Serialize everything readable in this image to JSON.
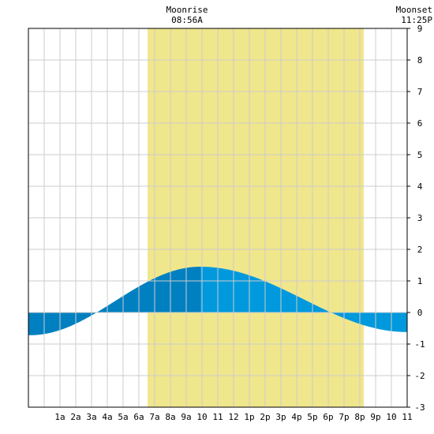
{
  "header": {
    "moonrise_label": "Moonrise",
    "moonrise_time": "08:56A",
    "moonset_label": "Moonset",
    "moonset_time": "11:25P"
  },
  "chart_data": {
    "type": "area",
    "title": "",
    "xlabel": "",
    "ylabel": "",
    "x_range_hours": [
      -1,
      23
    ],
    "ylim": [
      -3,
      9
    ],
    "y_ticks": [
      -3,
      -2,
      -1,
      0,
      1,
      2,
      3,
      4,
      5,
      6,
      7,
      8,
      9
    ],
    "x_ticks": [
      {
        "hour": 1,
        "label": "1a"
      },
      {
        "hour": 2,
        "label": "2a"
      },
      {
        "hour": 3,
        "label": "3a"
      },
      {
        "hour": 4,
        "label": "4a"
      },
      {
        "hour": 5,
        "label": "5a"
      },
      {
        "hour": 6,
        "label": "6a"
      },
      {
        "hour": 7,
        "label": "7a"
      },
      {
        "hour": 8,
        "label": "8a"
      },
      {
        "hour": 9,
        "label": "9a"
      },
      {
        "hour": 10,
        "label": "10"
      },
      {
        "hour": 11,
        "label": "11"
      },
      {
        "hour": 12,
        "label": "12"
      },
      {
        "hour": 13,
        "label": "1p"
      },
      {
        "hour": 14,
        "label": "2p"
      },
      {
        "hour": 15,
        "label": "3p"
      },
      {
        "hour": 16,
        "label": "4p"
      },
      {
        "hour": 17,
        "label": "5p"
      },
      {
        "hour": 18,
        "label": "6p"
      },
      {
        "hour": 19,
        "label": "7p"
      },
      {
        "hour": 20,
        "label": "8p"
      },
      {
        "hour": 21,
        "label": "9p"
      },
      {
        "hour": 22,
        "label": "10"
      },
      {
        "hour": 23,
        "label": "11"
      }
    ],
    "grid": true,
    "daylight_hours": [
      6.55,
      20.25
    ],
    "tide": {
      "low_1": {
        "hour": -0.9,
        "height": -0.72
      },
      "high": {
        "hour": 9.9,
        "height": 1.45
      },
      "low_2": {
        "hour": 23.0,
        "height": -0.62
      }
    },
    "colors": {
      "daylight": "#f0e68c",
      "tide_fill_left": "#0080c0",
      "tide_fill_right": "#0099dd",
      "grid": "#cccccc",
      "axis": "#000000"
    }
  }
}
